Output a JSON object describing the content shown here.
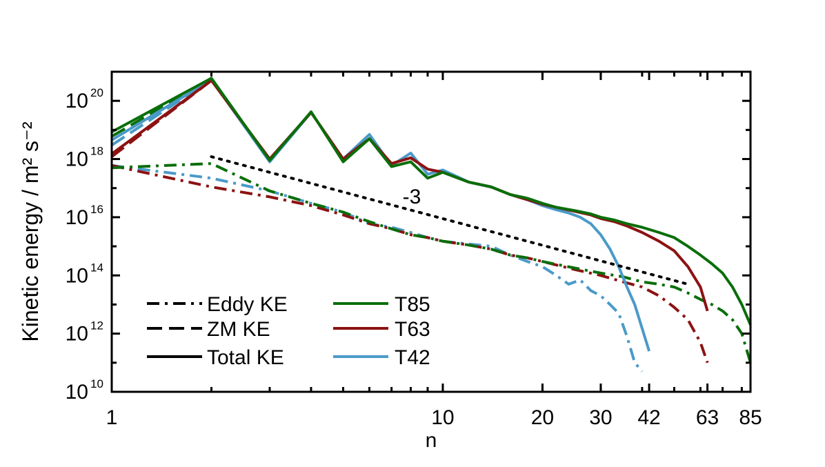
{
  "chart_data": {
    "type": "line",
    "xlabel": "n",
    "ylabel": "Kinetic energy / m² s⁻²",
    "xscale": "log",
    "yscale": "log",
    "xlim": [
      1,
      85
    ],
    "ylim": [
      10000000000.0,
      1e+21
    ],
    "xticks": [
      {
        "value": 1,
        "label": "1"
      },
      {
        "value": 10,
        "label": "10"
      },
      {
        "value": 20,
        "label": "20"
      },
      {
        "value": 30,
        "label": "30"
      },
      {
        "value": 42,
        "label": "42"
      },
      {
        "value": 63,
        "label": "63"
      },
      {
        "value": 85,
        "label": "85"
      }
    ],
    "yticks": [
      {
        "value": 1e+20,
        "base": "10",
        "exp": "20"
      },
      {
        "value": 1e+18,
        "base": "10",
        "exp": "18"
      },
      {
        "value": 1e+16,
        "base": "10",
        "exp": "16"
      },
      {
        "value": 100000000000000.0,
        "base": "10",
        "exp": "14"
      },
      {
        "value": 1000000000000.0,
        "base": "10",
        "exp": "12"
      },
      {
        "value": 10000000000.0,
        "base": "10",
        "exp": "10"
      }
    ],
    "grid": false,
    "annotation": {
      "text": "-3",
      "x": 15.5,
      "y": 3.2e+16
    },
    "reference_line": {
      "style": "dotted",
      "color": "#000000",
      "x": [
        2,
        55
      ],
      "y": [
        1.2e+18,
        50000000000000.0
      ]
    },
    "legend": {
      "placement": "bottom-left",
      "styles": [
        {
          "label": "Eddy KE",
          "dash": "dashdot"
        },
        {
          "label": "ZM KE",
          "dash": "dashed"
        },
        {
          "label": "Total KE",
          "dash": "solid"
        }
      ],
      "resolutions": [
        {
          "label": "T85",
          "color": "#0a6e0a"
        },
        {
          "label": "T63",
          "color": "#8c1212"
        },
        {
          "label": "T42",
          "color": "#4a9ac8"
        }
      ]
    },
    "series": [
      {
        "resolution": "T42",
        "kind": "Total KE",
        "color": "#4a9ac8",
        "dash": "solid",
        "x": [
          1,
          2,
          3,
          4,
          5,
          6,
          7,
          8,
          9,
          10,
          12,
          14,
          16,
          18,
          20,
          22,
          24,
          26,
          28,
          30,
          32,
          34,
          36,
          38,
          40,
          42
        ],
        "y": [
          4.5e+18,
          5.3e+20,
          8e+17,
          4e+19,
          1e+18,
          7e+18,
          6e+17,
          1.6e+18,
          3e+17,
          4.2e+17,
          1.6e+17,
          1.1e+17,
          6e+16,
          4e+16,
          2.5e+16,
          1.8e+16,
          1.4e+16,
          1e+16,
          6000000000000000.0,
          2500000000000000.0,
          800000000000000.0,
          200000000000000.0,
          40000000000000.0,
          10000000000000.0,
          1500000000000.0,
          250000000000.0
        ]
      },
      {
        "resolution": "T63",
        "kind": "Total KE",
        "color": "#8c1212",
        "dash": "solid",
        "x": [
          1,
          2,
          3,
          4,
          5,
          6,
          7,
          8,
          9,
          10,
          12,
          14,
          16,
          18,
          20,
          22,
          25,
          28,
          30,
          33,
          36,
          40,
          45,
          50,
          55,
          60,
          63
        ],
        "y": [
          1.5e+18,
          5e+20,
          1e+18,
          4e+19,
          1e+18,
          5e+18,
          7e+17,
          1.1e+18,
          4.5e+17,
          3.5e+17,
          1.6e+17,
          1.1e+17,
          6e+16,
          4e+16,
          2.8e+16,
          2.2e+16,
          1.6e+16,
          1.2e+16,
          9000000000000000.0,
          7000000000000000.0,
          5000000000000000.0,
          3000000000000000.0,
          1500000000000000.0,
          700000000000000.0,
          200000000000000.0,
          40000000000000.0,
          6000000000000.0
        ]
      },
      {
        "resolution": "T85",
        "kind": "Total KE",
        "color": "#0a6e0a",
        "dash": "solid",
        "x": [
          1,
          2,
          3,
          4,
          5,
          6,
          7,
          8,
          9,
          10,
          12,
          14,
          16,
          18,
          20,
          22,
          25,
          28,
          30,
          33,
          36,
          40,
          45,
          50,
          55,
          60,
          65,
          70,
          75,
          80,
          85
        ],
        "y": [
          8.5e+18,
          6e+20,
          9e+17,
          4.2e+19,
          8e+17,
          5e+18,
          5.5e+17,
          8e+17,
          2.2e+17,
          3.5e+17,
          1.6e+17,
          1.1e+17,
          6e+16,
          4.5e+16,
          3e+16,
          2.2e+16,
          1.7e+16,
          1.3e+16,
          1e+16,
          8000000000000000.0,
          6000000000000000.0,
          4500000000000000.0,
          3000000000000000.0,
          2000000000000000.0,
          1000000000000000.0,
          500000000000000.0,
          250000000000000.0,
          120000000000000.0,
          40000000000000.0,
          10000000000000.0,
          2000000000000.0
        ]
      },
      {
        "resolution": "T42",
        "kind": "ZM KE",
        "color": "#4a9ac8",
        "dash": "dashed",
        "x": [
          1,
          2
        ],
        "y": [
          3e+18,
          5.3e+20
        ]
      },
      {
        "resolution": "T63",
        "kind": "ZM KE",
        "color": "#8c1212",
        "dash": "dashed",
        "x": [
          1,
          2
        ],
        "y": [
          1.2e+18,
          5e+20
        ]
      },
      {
        "resolution": "T85",
        "kind": "ZM KE",
        "color": "#0a6e0a",
        "dash": "dashed",
        "x": [
          1,
          2
        ],
        "y": [
          6e+18,
          6e+20
        ]
      },
      {
        "resolution": "T42",
        "kind": "Eddy KE",
        "color": "#4a9ac8",
        "dash": "dashdot",
        "x": [
          1,
          2,
          3,
          4,
          5,
          6,
          7,
          8,
          9,
          10,
          12,
          14,
          16,
          18,
          20,
          22,
          24,
          26,
          28,
          30,
          32,
          34,
          36,
          38,
          40
        ],
        "y": [
          6e+17,
          2.2e+17,
          8e+16,
          3e+16,
          1.5e+16,
          6000000000000000.0,
          4500000000000000.0,
          3000000000000000.0,
          2000000000000000.0,
          1500000000000000.0,
          1200000000000000.0,
          1000000000000000.0,
          500000000000000.0,
          300000000000000.0,
          200000000000000.0,
          100000000000000.0,
          50000000000000.0,
          70000000000000.0,
          30000000000000.0,
          20000000000000.0,
          10000000000000.0,
          5000000000000.0,
          800000000000.0,
          100000000000.0,
          50000000000.0
        ]
      },
      {
        "resolution": "T63",
        "kind": "Eddy KE",
        "color": "#8c1212",
        "dash": "dashdot",
        "x": [
          1,
          2,
          3,
          4,
          5,
          6,
          7,
          8,
          9,
          10,
          12,
          14,
          16,
          18,
          20,
          25,
          30,
          35,
          40,
          45,
          50,
          55,
          60,
          63
        ],
        "y": [
          6e+17,
          1.1e+17,
          5e+16,
          2.5e+16,
          1.2e+16,
          6000000000000000.0,
          4000000000000000.0,
          2500000000000000.0,
          2000000000000000.0,
          1500000000000000.0,
          1100000000000000.0,
          800000000000000.0,
          500000000000000.0,
          400000000000000.0,
          300000000000000.0,
          160000000000000.0,
          100000000000000.0,
          60000000000000.0,
          40000000000000.0,
          20000000000000.0,
          8000000000000.0,
          3000000000000.0,
          500000000000.0,
          100000000000.0
        ]
      },
      {
        "resolution": "T85",
        "kind": "Eddy KE",
        "color": "#0a6e0a",
        "dash": "dashdot",
        "x": [
          1,
          2,
          3,
          4,
          5,
          6,
          7,
          8,
          9,
          10,
          12,
          14,
          16,
          18,
          20,
          25,
          30,
          35,
          40,
          45,
          50,
          55,
          60,
          65,
          70,
          75,
          80,
          85
        ],
        "y": [
          5e+17,
          7e+17,
          8e+16,
          3e+16,
          1.5e+16,
          7000000000000000.0,
          4000000000000000.0,
          2500000000000000.0,
          2000000000000000.0,
          1500000000000000.0,
          1100000000000000.0,
          800000000000000.0,
          500000000000000.0,
          400000000000000.0,
          300000000000000.0,
          180000000000000.0,
          120000000000000.0,
          90000000000000.0,
          60000000000000.0,
          50000000000000.0,
          40000000000000.0,
          25000000000000.0,
          15000000000000.0,
          10000000000000.0,
          6000000000000.0,
          3000000000000.0,
          1000000000000.0,
          100000000000.0
        ]
      }
    ]
  }
}
